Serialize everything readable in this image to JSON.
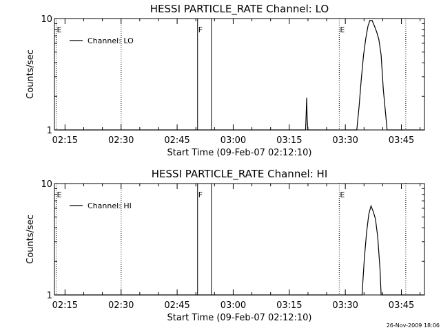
{
  "footer": {
    "timestamp": "26-Nov-2009 18:06"
  },
  "chart_data": [
    {
      "type": "line",
      "title": "HESSI PARTICLE_RATE Channel: LO",
      "xlabel": "Start Time (09-Feb-07 02:12:10)",
      "ylabel": "Counts/sec",
      "x_unit": "minutes after 02:12:10",
      "xlim": [
        0,
        99
      ],
      "ylim": [
        1,
        10
      ],
      "yscale": "log",
      "x_ticks": [
        {
          "value": 2.83,
          "label": "02:15"
        },
        {
          "value": 17.83,
          "label": "02:30"
        },
        {
          "value": 32.83,
          "label": "02:45"
        },
        {
          "value": 47.83,
          "label": "03:00"
        },
        {
          "value": 62.83,
          "label": "03:15"
        },
        {
          "value": 77.83,
          "label": "03:30"
        },
        {
          "value": 92.83,
          "label": "03:45"
        }
      ],
      "y_ticks": [
        {
          "value": 1,
          "label": "1"
        },
        {
          "value": 10,
          "label": "10"
        }
      ],
      "legend": {
        "position": "top-left",
        "entries": [
          "Channel: LO"
        ]
      },
      "series": [
        {
          "name": "Channel: LO",
          "color": "#000000",
          "x": [
            0,
            67.2,
            67.3,
            67.5,
            67.6,
            67.8,
            80.9,
            81.5,
            82.1,
            82.7,
            83.3,
            83.9,
            84.4,
            85.0,
            85.6,
            86.2,
            86.8,
            87.4,
            88.0,
            88.6,
            89.0,
            99
          ],
          "y": [
            1,
            1,
            1.28,
            1.95,
            1.28,
            1,
            1,
            1.62,
            2.85,
            4.7,
            6.6,
            8.6,
            9.6,
            9.6,
            8.6,
            7.6,
            6.5,
            4.7,
            2.3,
            1.4,
            1,
            1
          ]
        }
      ],
      "vlines": [
        {
          "x": 0.45,
          "style": "dotted",
          "label": "E"
        },
        {
          "x": 17.85,
          "style": "dotted",
          "label": ""
        },
        {
          "x": 38.3,
          "style": "solid",
          "label": "F"
        },
        {
          "x": 42.0,
          "style": "solid",
          "label": ""
        },
        {
          "x": 76.2,
          "style": "dotted",
          "label": "E"
        },
        {
          "x": 94.0,
          "style": "dotted",
          "label": ""
        }
      ]
    },
    {
      "type": "line",
      "title": "HESSI PARTICLE_RATE Channel: HI",
      "xlabel": "Start Time (09-Feb-07 02:12:10)",
      "ylabel": "Counts/sec",
      "x_unit": "minutes after 02:12:10",
      "xlim": [
        0,
        99
      ],
      "ylim": [
        1,
        10
      ],
      "yscale": "log",
      "x_ticks": [
        {
          "value": 2.83,
          "label": "02:15"
        },
        {
          "value": 17.83,
          "label": "02:30"
        },
        {
          "value": 32.83,
          "label": "02:45"
        },
        {
          "value": 47.83,
          "label": "03:00"
        },
        {
          "value": 62.83,
          "label": "03:15"
        },
        {
          "value": 77.83,
          "label": "03:30"
        },
        {
          "value": 92.83,
          "label": "03:45"
        }
      ],
      "y_ticks": [
        {
          "value": 1,
          "label": "1"
        },
        {
          "value": 10,
          "label": "10"
        }
      ],
      "legend": {
        "position": "top-left",
        "entries": [
          "Channel: HI"
        ]
      },
      "series": [
        {
          "name": "Channel: HI",
          "color": "#000000",
          "x": [
            0,
            82.3,
            82.9,
            83.5,
            84.1,
            84.7,
            85.3,
            85.9,
            86.5,
            87.1,
            87.4,
            99
          ],
          "y": [
            1,
            1,
            2.1,
            3.6,
            5.3,
            6.3,
            5.6,
            4.8,
            3.3,
            1.7,
            1,
            1
          ]
        }
      ],
      "vlines": [
        {
          "x": 0.45,
          "style": "dotted",
          "label": "E"
        },
        {
          "x": 17.85,
          "style": "dotted",
          "label": ""
        },
        {
          "x": 38.3,
          "style": "solid",
          "label": "F"
        },
        {
          "x": 42.0,
          "style": "solid",
          "label": ""
        },
        {
          "x": 76.2,
          "style": "dotted",
          "label": "E"
        },
        {
          "x": 94.0,
          "style": "dotted",
          "label": ""
        }
      ]
    }
  ]
}
